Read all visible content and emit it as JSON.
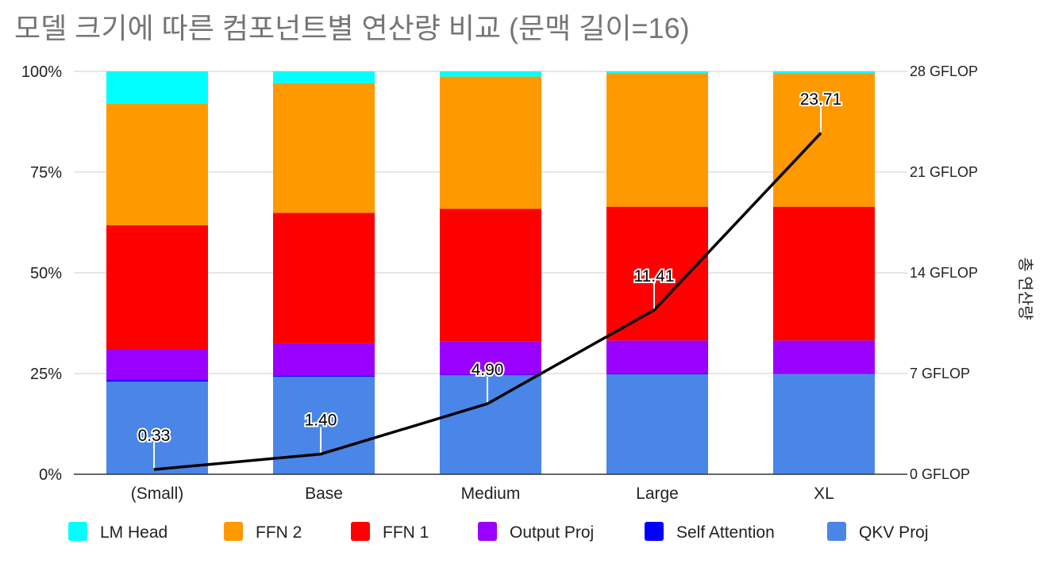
{
  "chart_data": {
    "type": "bar",
    "stacked": true,
    "normalized": true,
    "title": "모델 크기에 따른 컴포넌트별 연산량 비교 (문맥 길이=16)",
    "categories": [
      "(Small)",
      "Base",
      "Medium",
      "Large",
      "XL"
    ],
    "y_ticks": [
      "0%",
      "25%",
      "50%",
      "75%",
      "100%"
    ],
    "ylim": [
      0,
      100
    ],
    "y2_label": "총 연산량",
    "y2_ticks": [
      "0 GFLOP",
      "7 GFLOP",
      "14 GFLOP",
      "21 GFLOP",
      "28 GFLOP"
    ],
    "y2lim": [
      0,
      28
    ],
    "series": [
      {
        "name": "QKV Proj",
        "color": "#4a86e8",
        "values": [
          23.0,
          24.2,
          24.6,
          24.8,
          24.9
        ]
      },
      {
        "name": "Self Attention",
        "color": "#0000ff",
        "values": [
          0.4,
          0.2,
          0.1,
          0.1,
          0.0
        ]
      },
      {
        "name": "Output Proj",
        "color": "#9900ff",
        "values": [
          7.7,
          8.1,
          8.2,
          8.3,
          8.3
        ]
      },
      {
        "name": "FFN 1",
        "color": "#ff0000",
        "values": [
          30.7,
          32.4,
          33.0,
          33.2,
          33.2
        ]
      },
      {
        "name": "FFN 2",
        "color": "#ff9900",
        "values": [
          30.2,
          32.2,
          32.8,
          33.1,
          33.1
        ]
      },
      {
        "name": "LM Head",
        "color": "#00ffff",
        "values": [
          8.0,
          2.9,
          1.3,
          0.5,
          0.5
        ]
      }
    ],
    "legend": [
      "LM Head",
      "FFN 2",
      "FFN 1",
      "Output Proj",
      "Self Attention",
      "QKV Proj"
    ],
    "line": {
      "name": "총 연산량",
      "color": "#000000",
      "values": [
        0.33,
        1.4,
        4.9,
        11.41,
        23.71
      ],
      "labels": [
        "0.33",
        "1.40",
        "4.90",
        "11.41",
        "23.71"
      ]
    }
  }
}
